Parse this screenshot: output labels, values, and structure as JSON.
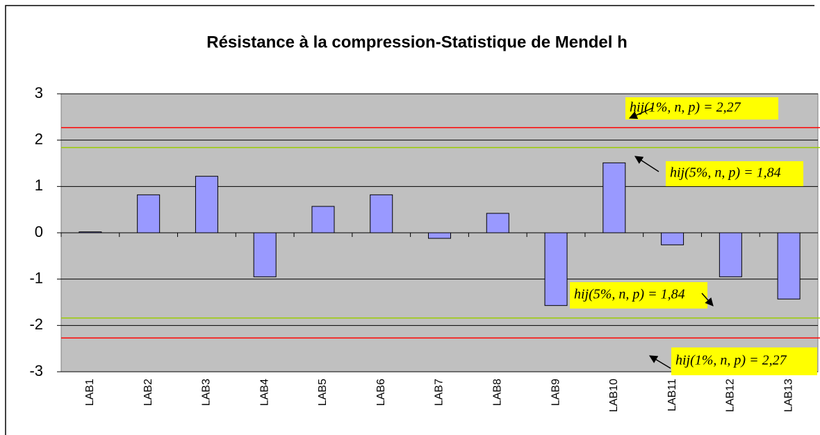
{
  "chart_data": {
    "type": "bar",
    "title": "Résistance à la compression-Statistique de Mendel h",
    "categories": [
      "LAB1",
      "LAB2",
      "LAB3",
      "LAB4",
      "LAB5",
      "LAB6",
      "LAB7",
      "LAB8",
      "LAB9",
      "LAB10",
      "LAB11",
      "LAB12",
      "LAB13"
    ],
    "values": [
      0.02,
      0.82,
      1.22,
      -0.95,
      0.57,
      0.82,
      -0.12,
      0.42,
      -1.57,
      1.51,
      -0.26,
      -0.95,
      -1.43
    ],
    "color": "#9999ff",
    "ylim": [
      -3,
      3
    ],
    "yticks": [
      -3,
      -2,
      -1,
      0,
      1,
      2,
      3
    ],
    "grid": true,
    "reference_lines": [
      {
        "value": 2.27,
        "color": "#ff0000",
        "label": "hij(1%, n, p) = 2,27"
      },
      {
        "value": 1.84,
        "color": "#99cc00",
        "label": "hij(5%, n, p) = 1,84"
      },
      {
        "value": -1.84,
        "color": "#99cc00",
        "label": "hij(5%, n, p) = 1,84"
      },
      {
        "value": -2.27,
        "color": "#ff0000",
        "label": "hij(1%, n, p) = 2,27"
      }
    ]
  }
}
